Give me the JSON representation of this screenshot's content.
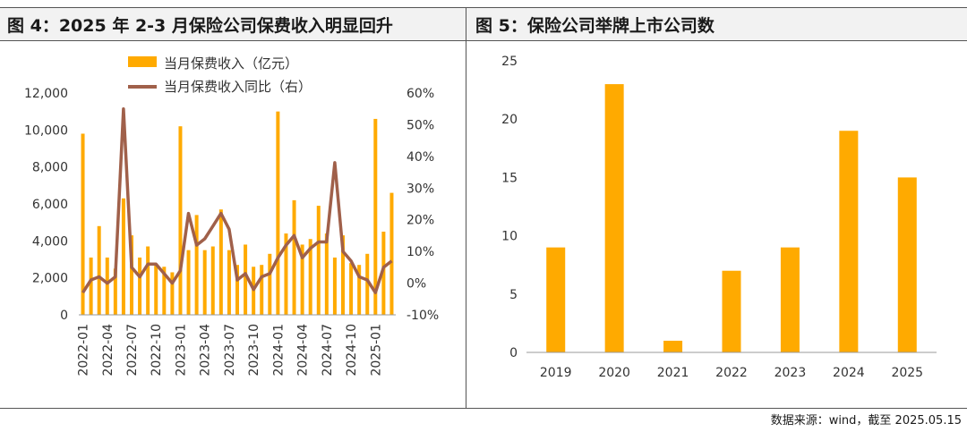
{
  "figure_left": {
    "title": "图 4：2025 年 2-3 月保险公司保费收入明显回升"
  },
  "figure_right": {
    "title": "图 5：保险公司举牌上市公司数"
  },
  "source_note": "数据来源：wind，截至 2025.05.15",
  "colors": {
    "bar": "#FFAA00",
    "line": "#A0604A"
  },
  "chart_data": [
    {
      "type": "bar+line",
      "x": [
        "2022-01",
        "2022-02",
        "2022-03",
        "2022-04",
        "2022-05",
        "2022-06",
        "2022-07",
        "2022-08",
        "2022-09",
        "2022-10",
        "2022-11",
        "2022-12",
        "2023-01",
        "2023-02",
        "2023-03",
        "2023-04",
        "2023-05",
        "2023-06",
        "2023-07",
        "2023-08",
        "2023-09",
        "2023-10",
        "2023-11",
        "2023-12",
        "2024-01",
        "2024-02",
        "2024-03",
        "2024-04",
        "2024-05",
        "2024-06",
        "2024-07",
        "2024-08",
        "2024-09",
        "2024-10",
        "2024-11",
        "2024-12",
        "2025-01",
        "2025-02",
        "2025-03"
      ],
      "x_tick_labels": [
        "2022-01",
        "2022-04",
        "2022-07",
        "2022-10",
        "2023-01",
        "2023-04",
        "2023-07",
        "2023-10",
        "2024-01",
        "2024-04",
        "2024-07",
        "2024-10",
        "2025-01"
      ],
      "series": [
        {
          "name": "当月保费收入（亿元）",
          "kind": "bar",
          "axis": "left",
          "values": [
            9800,
            3100,
            4800,
            3100,
            2500,
            6300,
            4300,
            3100,
            3700,
            2700,
            2600,
            2300,
            10200,
            3500,
            5400,
            3500,
            3700,
            5700,
            3500,
            2700,
            3800,
            2600,
            2700,
            3300,
            11000,
            4400,
            6200,
            3800,
            4100,
            5900,
            4400,
            3100,
            4300,
            2800,
            2700,
            3300,
            10600,
            4500,
            6600
          ]
        },
        {
          "name": "当月保费收入同比（右）",
          "kind": "line",
          "axis": "right",
          "values": [
            -3,
            1,
            2,
            0,
            2,
            55,
            5,
            2,
            6,
            6,
            3,
            0,
            4,
            22,
            12,
            14,
            18,
            22,
            17,
            1,
            3,
            -2,
            2,
            3,
            8,
            12,
            15,
            8,
            11,
            13,
            13,
            38,
            10,
            7,
            2,
            1,
            -3,
            5,
            7
          ]
        }
      ],
      "y_left": {
        "ticks": [
          "0",
          "2,000",
          "4,000",
          "6,000",
          "8,000",
          "10,000",
          "12,000"
        ],
        "lim": [
          0,
          12000
        ]
      },
      "y_right": {
        "ticks": [
          "-10%",
          "0%",
          "10%",
          "20%",
          "30%",
          "40%",
          "50%",
          "60%"
        ],
        "lim": [
          -10,
          60
        ]
      },
      "legend_position": "top-center"
    },
    {
      "type": "bar",
      "categories": [
        "2019",
        "2020",
        "2021",
        "2022",
        "2023",
        "2024",
        "2025"
      ],
      "values": [
        9,
        23,
        1,
        7,
        9,
        19,
        15
      ],
      "y_ticks": [
        "0",
        "5",
        "10",
        "15",
        "20",
        "25"
      ],
      "ylim": [
        0,
        25
      ]
    }
  ]
}
